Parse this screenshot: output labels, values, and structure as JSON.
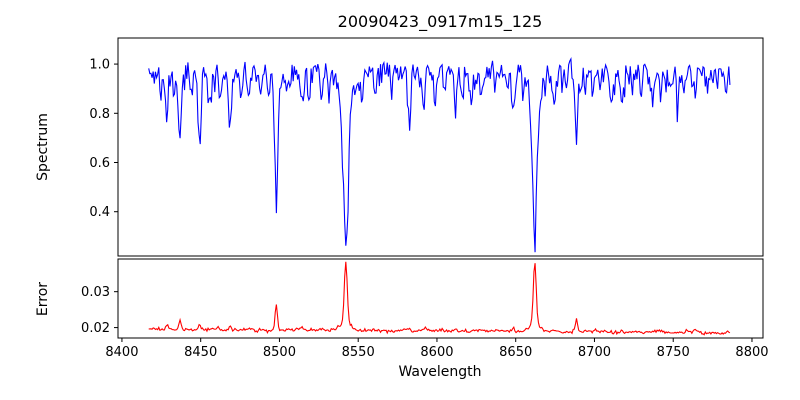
{
  "figure": {
    "background": "#ffffff",
    "title": "20090423_0917m15_125"
  },
  "chart_data": {
    "type": "line",
    "title": "20090423_0917m15_125",
    "xlabel": "Wavelength",
    "grid": false,
    "legend": "none",
    "x_axis": {
      "lim": [
        8397.5,
        8807
      ],
      "ticks": [
        8400,
        8450,
        8500,
        8550,
        8600,
        8650,
        8700,
        8750,
        8800
      ],
      "tick_labels": [
        "8400",
        "8450",
        "8500",
        "8550",
        "8600",
        "8650",
        "8700",
        "8750",
        "8800"
      ]
    },
    "wavelength_start": 8417,
    "wavelength_end": 8786,
    "n_points": 520,
    "panels": [
      {
        "name": "spectrum",
        "ylabel": "Spectrum",
        "line_color": "#0000ff",
        "ylim": [
          0.22,
          1.106
        ],
        "yticks": [
          0.4,
          0.6,
          0.8,
          1.0
        ],
        "ytick_labels": [
          "0.4",
          "0.6",
          "0.8",
          "1.0"
        ]
      },
      {
        "name": "error",
        "ylabel": "Error",
        "line_color": "#ff0000",
        "ylim": [
          0.0171,
          0.0391
        ],
        "yticks": [
          0.02,
          0.03
        ],
        "ytick_labels": [
          "0.02",
          "0.03"
        ]
      }
    ],
    "absorption_minima": [
      {
        "wavelength": 8498,
        "flux": 0.43
      },
      {
        "wavelength": 8542,
        "flux": 0.26
      },
      {
        "wavelength": 8662,
        "flux": 0.28
      },
      {
        "wavelength": 8689,
        "flux": 0.71
      }
    ],
    "spectrum_model": {
      "continuum": 1.0,
      "noise_seed": 11,
      "noise_amp_fine": 0.011,
      "noise_amp_smooth": 0.05,
      "noise_smooth_alpha": 0.45,
      "lines_note": "[center_angstrom, depth, gaussian_sigma]",
      "lines": [
        [
          8424.5,
          0.09,
          0.7
        ],
        [
          8428.6,
          0.2,
          0.8
        ],
        [
          8433.5,
          0.1,
          0.7
        ],
        [
          8436.8,
          0.26,
          0.9
        ],
        [
          8444.0,
          0.1,
          0.7
        ],
        [
          8449.2,
          0.2,
          0.9
        ],
        [
          8455.5,
          0.12,
          0.7
        ],
        [
          8462.2,
          0.13,
          0.8
        ],
        [
          8468.6,
          0.2,
          1.0
        ],
        [
          8475.5,
          0.12,
          0.7
        ],
        [
          8480.0,
          0.09,
          0.6
        ],
        [
          8488.0,
          0.1,
          0.7
        ],
        [
          8493.0,
          0.09,
          0.6
        ],
        [
          8498.0,
          0.38,
          1.1
        ],
        [
          8498.0,
          0.12,
          0.45
        ],
        [
          8498.0,
          0.05,
          3.0
        ],
        [
          8504.5,
          0.09,
          0.6
        ],
        [
          8514.3,
          0.15,
          0.8
        ],
        [
          8518.8,
          0.12,
          0.7
        ],
        [
          8526.5,
          0.1,
          0.7
        ],
        [
          8531.5,
          0.09,
          0.6
        ],
        [
          8542.1,
          0.52,
          1.9
        ],
        [
          8542.1,
          0.13,
          0.6
        ],
        [
          8542.1,
          0.08,
          4.0
        ],
        [
          8548.5,
          0.09,
          0.6
        ],
        [
          8552.5,
          0.12,
          0.7
        ],
        [
          8560.9,
          0.11,
          0.7
        ],
        [
          8571.0,
          0.09,
          0.6
        ],
        [
          8582.4,
          0.16,
          0.9
        ],
        [
          8592.0,
          0.09,
          0.6
        ],
        [
          8598.8,
          0.12,
          0.7
        ],
        [
          8605.0,
          0.08,
          0.6
        ],
        [
          8611.6,
          0.15,
          0.8
        ],
        [
          8616.0,
          0.09,
          0.6
        ],
        [
          8621.6,
          0.13,
          0.7
        ],
        [
          8628.0,
          0.08,
          0.6
        ],
        [
          8637.0,
          0.09,
          0.6
        ],
        [
          8648.6,
          0.15,
          0.9
        ],
        [
          8654.5,
          0.1,
          0.6
        ],
        [
          8662.1,
          0.48,
          1.6
        ],
        [
          8662.1,
          0.16,
          0.55
        ],
        [
          8662.1,
          0.08,
          3.5
        ],
        [
          8668.5,
          0.09,
          0.6
        ],
        [
          8675.0,
          0.13,
          0.7
        ],
        [
          8682.0,
          0.09,
          0.6
        ],
        [
          8688.7,
          0.27,
          0.9
        ],
        [
          8694.0,
          0.09,
          0.6
        ],
        [
          8699.0,
          0.1,
          0.6
        ],
        [
          8710.5,
          0.13,
          0.8
        ],
        [
          8717.2,
          0.14,
          0.8
        ],
        [
          8724.0,
          0.09,
          0.6
        ],
        [
          8729.5,
          0.11,
          0.7
        ],
        [
          8736.5,
          0.1,
          0.7
        ],
        [
          8742.0,
          0.09,
          0.6
        ],
        [
          8747.5,
          0.08,
          0.6
        ],
        [
          8752.5,
          0.08,
          0.6
        ],
        [
          8757.5,
          0.07,
          0.5
        ],
        [
          8764.0,
          0.1,
          0.7
        ],
        [
          8772.0,
          0.09,
          0.6
        ],
        [
          8778.0,
          0.07,
          0.5
        ]
      ]
    },
    "error_model": {
      "baseline_left": 0.0196,
      "baseline_right": 0.0187,
      "noise_seed": 5,
      "noise_amp_fine": 0.0002,
      "noise_amp_smooth": 0.0003,
      "noise_smooth_alpha": 0.45,
      "peaks_note": "[center_angstrom, amplitude, gaussian_sigma]",
      "peaks": [
        [
          8428.6,
          0.0015,
          0.7
        ],
        [
          8436.8,
          0.0026,
          0.7
        ],
        [
          8449.2,
          0.0011,
          0.7
        ],
        [
          8468.6,
          0.0011,
          0.7
        ],
        [
          8498.0,
          0.007,
          0.8
        ],
        [
          8514.3,
          0.0008,
          0.6
        ],
        [
          8542.1,
          0.0172,
          0.9
        ],
        [
          8542.1,
          0.0022,
          3.0
        ],
        [
          8582.4,
          0.0011,
          0.7
        ],
        [
          8611.6,
          0.0008,
          0.6
        ],
        [
          8648.6,
          0.0009,
          0.7
        ],
        [
          8662.1,
          0.0168,
          0.9
        ],
        [
          8662.1,
          0.0022,
          3.0
        ],
        [
          8688.7,
          0.0032,
          0.7
        ],
        [
          8717.2,
          0.0007,
          0.6
        ],
        [
          8764.0,
          0.001,
          0.8
        ]
      ]
    }
  }
}
